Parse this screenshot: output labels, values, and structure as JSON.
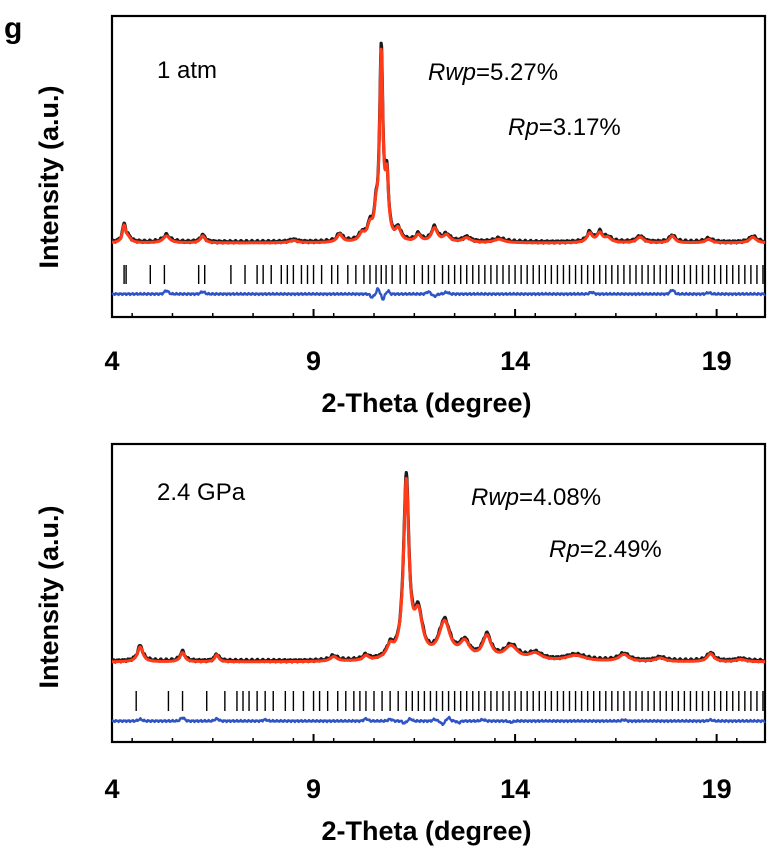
{
  "panel_label": "g",
  "chart_data": [
    {
      "type": "line",
      "x_ticks": [
        4,
        9,
        14,
        19
      ],
      "xlim": [
        4,
        20.2
      ],
      "xlabel": "2-Theta (degree)",
      "ylabel": "Intensity (a.u.)",
      "condition": "1 atm",
      "rwp_label": "Rwp",
      "rwp_value": "=5.27%",
      "rp_label": "Rp",
      "rp_value": "=3.17%",
      "colors": {
        "observed": "#1a1a1a",
        "calculated": "#ff3b1a",
        "difference": "#2f54c6",
        "reflections": "#000000"
      },
      "baseline": 5,
      "ylim": [
        0,
        100
      ],
      "peaks": [
        [
          4.3,
          7,
          0.05
        ],
        [
          4.4,
          2,
          0.08
        ],
        [
          5.35,
          3,
          0.1
        ],
        [
          6.25,
          3,
          0.07
        ],
        [
          8.5,
          1,
          0.12
        ],
        [
          9.65,
          3.5,
          0.08
        ],
        [
          10.2,
          3,
          0.08
        ],
        [
          10.4,
          6,
          0.08
        ],
        [
          10.55,
          9,
          0.05
        ],
        [
          10.68,
          80,
          0.05
        ],
        [
          10.82,
          24,
          0.05
        ],
        [
          11.1,
          5,
          0.08
        ],
        [
          11.6,
          3,
          0.08
        ],
        [
          12.0,
          6,
          0.09
        ],
        [
          12.3,
          3,
          0.1
        ],
        [
          12.8,
          2,
          0.12
        ],
        [
          13.6,
          1.5,
          0.15
        ],
        [
          15.85,
          4,
          0.08
        ],
        [
          16.1,
          4,
          0.08
        ],
        [
          16.3,
          2,
          0.1
        ],
        [
          17.1,
          2.5,
          0.1
        ],
        [
          17.9,
          3,
          0.08
        ],
        [
          18.8,
          1.5,
          0.1
        ],
        [
          19.9,
          2.5,
          0.1
        ]
      ],
      "reflections": [
        4.3,
        4.35,
        4.95,
        5.3,
        6.15,
        6.3,
        6.95,
        7.3,
        7.6,
        7.75,
        7.95,
        8.2,
        8.35,
        8.5,
        8.7,
        8.85,
        9.0,
        9.2,
        9.45,
        9.6,
        9.85,
        10.05,
        10.25,
        10.4,
        10.55,
        10.68,
        10.8,
        10.95,
        11.15,
        11.3,
        11.5,
        11.7,
        11.85,
        12.0,
        12.2,
        12.35,
        12.5,
        12.65,
        12.8,
        12.95,
        13.1,
        13.25,
        13.4,
        13.55,
        13.7,
        13.85,
        14.0,
        14.15,
        14.3,
        14.45,
        14.6,
        14.75,
        14.9,
        15.05,
        15.2,
        15.35,
        15.5,
        15.65,
        15.8,
        15.95,
        16.1,
        16.25,
        16.4,
        16.55,
        16.7,
        16.85,
        17.0,
        17.15,
        17.3,
        17.45,
        17.6,
        17.75,
        17.9,
        18.05,
        18.2,
        18.35,
        18.5,
        18.65,
        18.8,
        18.95,
        19.1,
        19.25,
        19.4,
        19.55,
        19.7,
        19.85,
        20.0,
        20.15
      ],
      "diff_features": [
        [
          5.35,
          1.5,
          0.05
        ],
        [
          6.25,
          1,
          0.05
        ],
        [
          10.45,
          -1.5,
          0.04
        ],
        [
          10.6,
          2.5,
          0.03
        ],
        [
          10.72,
          -2.5,
          0.03
        ],
        [
          10.85,
          1.5,
          0.03
        ],
        [
          11.85,
          1,
          0.05
        ],
        [
          12.0,
          -1,
          0.05
        ],
        [
          12.3,
          0.8,
          0.05
        ],
        [
          15.9,
          0.8,
          0.05
        ],
        [
          17.9,
          1.8,
          0.05
        ],
        [
          18.8,
          0.6,
          0.05
        ]
      ]
    },
    {
      "type": "line",
      "x_ticks": [
        4,
        9,
        14,
        19
      ],
      "xlim": [
        4,
        20.2
      ],
      "xlabel": "2-Theta (degree)",
      "ylabel": "Intensity (a.u.)",
      "condition": "2.4 GPa",
      "rwp_label": "Rwp",
      "rwp_value": "=4.08%",
      "rp_label": "Rp",
      "rp_value": "=2.49%",
      "colors": {
        "observed": "#1a1a1a",
        "calculated": "#ff3b1a",
        "difference": "#2f54c6",
        "reflections": "#000000"
      },
      "baseline": 5,
      "ylim": [
        0,
        100
      ],
      "peaks": [
        [
          4.7,
          6.5,
          0.08
        ],
        [
          5.75,
          4,
          0.07
        ],
        [
          6.6,
          3,
          0.06
        ],
        [
          9.5,
          2,
          0.1
        ],
        [
          10.3,
          2,
          0.08
        ],
        [
          10.9,
          5,
          0.1
        ],
        [
          11.3,
          76,
          0.08
        ],
        [
          11.6,
          18,
          0.13
        ],
        [
          12.25,
          16,
          0.17
        ],
        [
          12.75,
          7,
          0.15
        ],
        [
          13.3,
          10,
          0.13
        ],
        [
          13.9,
          6,
          0.2
        ],
        [
          14.5,
          3,
          0.2
        ],
        [
          15.5,
          2.5,
          0.3
        ],
        [
          16.7,
          3,
          0.15
        ],
        [
          17.6,
          1.5,
          0.15
        ],
        [
          18.85,
          3.5,
          0.1
        ],
        [
          19.6,
          1,
          0.15
        ]
      ],
      "reflections": [
        4.6,
        5.4,
        5.75,
        6.35,
        6.8,
        7.1,
        7.25,
        7.4,
        7.6,
        7.8,
        8.0,
        8.3,
        8.5,
        8.75,
        9.0,
        9.15,
        9.35,
        9.6,
        9.8,
        10.0,
        10.15,
        10.3,
        10.5,
        10.7,
        10.9,
        11.1,
        11.3,
        11.45,
        11.6,
        11.75,
        11.9,
        12.05,
        12.2,
        12.35,
        12.5,
        12.65,
        12.8,
        12.95,
        13.1,
        13.25,
        13.4,
        13.55,
        13.7,
        13.85,
        14.0,
        14.15,
        14.3,
        14.45,
        14.6,
        14.75,
        14.9,
        15.05,
        15.2,
        15.35,
        15.5,
        15.65,
        15.8,
        15.95,
        16.1,
        16.25,
        16.4,
        16.55,
        16.7,
        16.85,
        17.0,
        17.15,
        17.3,
        17.45,
        17.6,
        17.75,
        17.9,
        18.05,
        18.2,
        18.35,
        18.5,
        18.65,
        18.8,
        18.95,
        19.1,
        19.25,
        19.4,
        19.55,
        19.7,
        19.85,
        20.0,
        20.15
      ],
      "diff_features": [
        [
          4.7,
          0.8,
          0.05
        ],
        [
          5.75,
          1.5,
          0.05
        ],
        [
          6.6,
          1,
          0.05
        ],
        [
          7.8,
          0.6,
          0.05
        ],
        [
          10.3,
          1,
          0.05
        ],
        [
          10.9,
          0.8,
          0.05
        ],
        [
          11.25,
          -1,
          0.04
        ],
        [
          11.4,
          1,
          0.04
        ],
        [
          12.0,
          0.8,
          0.04
        ],
        [
          12.2,
          -1.5,
          0.04
        ],
        [
          12.35,
          1.5,
          0.04
        ],
        [
          12.6,
          -0.8,
          0.04
        ],
        [
          13.2,
          0.6,
          0.05
        ],
        [
          13.9,
          -0.6,
          0.05
        ],
        [
          16.7,
          0.5,
          0.05
        ],
        [
          18.85,
          0.5,
          0.05
        ]
      ]
    }
  ]
}
